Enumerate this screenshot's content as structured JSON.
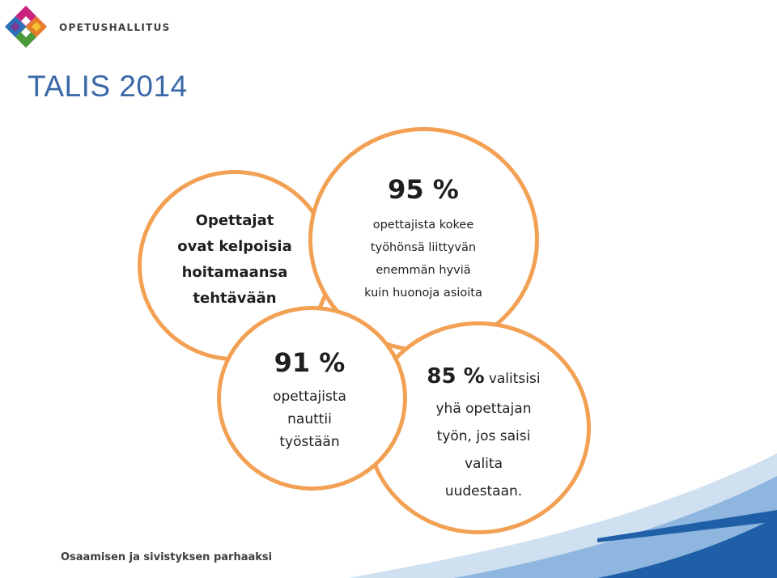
{
  "header": {
    "logo_text": "OPETUSHALLITUS",
    "title": "TALIS 2014"
  },
  "circles": [
    {
      "lines": [
        "Opettajat",
        "ovat kelpoisia",
        "hoitamaansa",
        "tehtävään"
      ]
    },
    {
      "percent": "95 %",
      "lines": [
        "opettajista kokee",
        "työhönsä liittyvän",
        "enemmän hyviä",
        "kuin huonoja asioita"
      ]
    },
    {
      "percent": "85 %",
      "first_line_rest": "valitsisi",
      "lines": [
        "yhä opettajan",
        "työn, jos saisi",
        "valita",
        "uudestaan."
      ]
    },
    {
      "percent": "91 %",
      "lines": [
        "opettajista",
        "nauttii",
        "työstään"
      ]
    }
  ],
  "footer": {
    "slogan": "Osaamisen ja sivistyksen parhaaksi"
  },
  "colors": {
    "title": "#3b69a8",
    "circle_border": "#f2a154",
    "swoosh_dark": "#1f5fa8",
    "swoosh_light": "#cfe0f1"
  }
}
